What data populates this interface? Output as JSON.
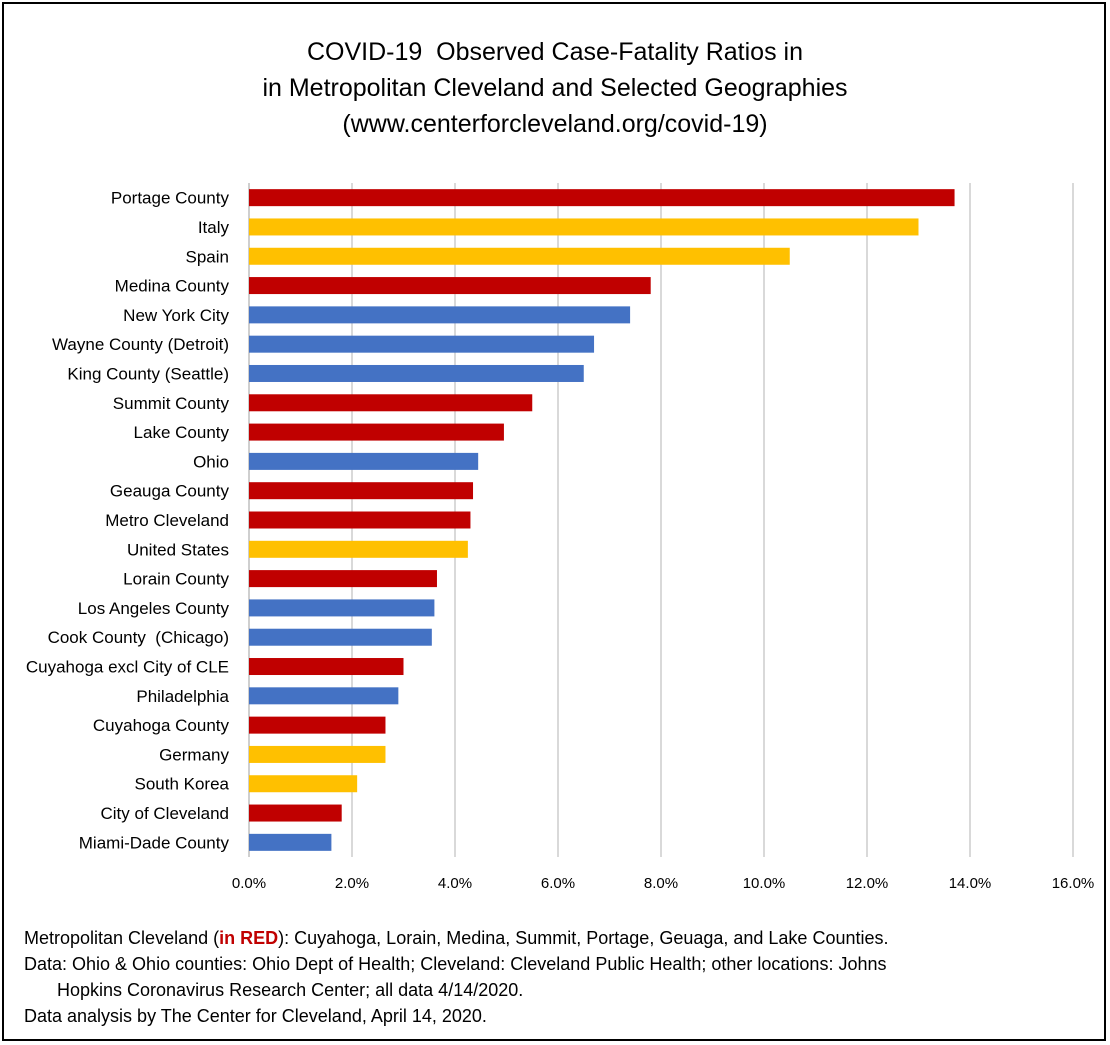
{
  "chart_data": {
    "type": "bar",
    "orientation": "horizontal",
    "title_lines": [
      "COVID-19  Observed Case-Fatality Ratios in",
      "in Metropolitan Cleveland and Selected Geographies",
      "(www.centerforcleveland.org/covid-19)"
    ],
    "xlim": [
      0,
      16
    ],
    "x_ticks": [
      "0.0%",
      "2.0%",
      "4.0%",
      "6.0%",
      "8.0%",
      "10.0%",
      "12.0%",
      "14.0%",
      "16.0%"
    ],
    "grid": true,
    "groups": {
      "metro": "#c00000",
      "international": "#ffc000",
      "other": "#4472c4"
    },
    "bars": [
      {
        "label": "Portage County",
        "value": 13.7,
        "group": "metro"
      },
      {
        "label": "Italy",
        "value": 13.0,
        "group": "international"
      },
      {
        "label": "Spain",
        "value": 10.5,
        "group": "international"
      },
      {
        "label": "Medina County",
        "value": 7.8,
        "group": "metro"
      },
      {
        "label": "New York City",
        "value": 7.4,
        "group": "other"
      },
      {
        "label": "Wayne County (Detroit)",
        "value": 6.7,
        "group": "other"
      },
      {
        "label": "King County (Seattle)",
        "value": 6.5,
        "group": "other"
      },
      {
        "label": "Summit County",
        "value": 5.5,
        "group": "metro"
      },
      {
        "label": "Lake County",
        "value": 4.95,
        "group": "metro"
      },
      {
        "label": "Ohio",
        "value": 4.45,
        "group": "other"
      },
      {
        "label": "Geauga County",
        "value": 4.35,
        "group": "metro"
      },
      {
        "label": "Metro Cleveland",
        "value": 4.3,
        "group": "metro"
      },
      {
        "label": "United States",
        "value": 4.25,
        "group": "international"
      },
      {
        "label": "Lorain County",
        "value": 3.65,
        "group": "metro"
      },
      {
        "label": "Los Angeles County",
        "value": 3.6,
        "group": "other"
      },
      {
        "label": "Cook County  (Chicago)",
        "value": 3.55,
        "group": "other"
      },
      {
        "label": "Cuyahoga excl City of CLE",
        "value": 3.0,
        "group": "metro"
      },
      {
        "label": "Philadelphia",
        "value": 2.9,
        "group": "other"
      },
      {
        "label": "Cuyahoga County",
        "value": 2.65,
        "group": "metro"
      },
      {
        "label": "Germany",
        "value": 2.65,
        "group": "international"
      },
      {
        "label": "South Korea",
        "value": 2.1,
        "group": "international"
      },
      {
        "label": "City of Cleveland",
        "value": 1.8,
        "group": "metro"
      },
      {
        "label": "Miami-Dade County",
        "value": 1.6,
        "group": "other"
      }
    ]
  },
  "notes": {
    "line1_prefix": "Metropolitan Cleveland (",
    "line1_red": "in RED",
    "line1_suffix": "):  Cuyahoga, Lorain, Medina, Summit, Portage, Geuaga, and Lake Counties.",
    "line2": "Data: Ohio & Ohio counties: Ohio Dept of Health; Cleveland: Cleveland  Public Health; other locations:  Johns",
    "line3": "Hopkins Coronavirus Research Center; all data 4/14/2020.",
    "line4": "Data analysis by The Center for Cleveland,  April 14, 2020."
  }
}
